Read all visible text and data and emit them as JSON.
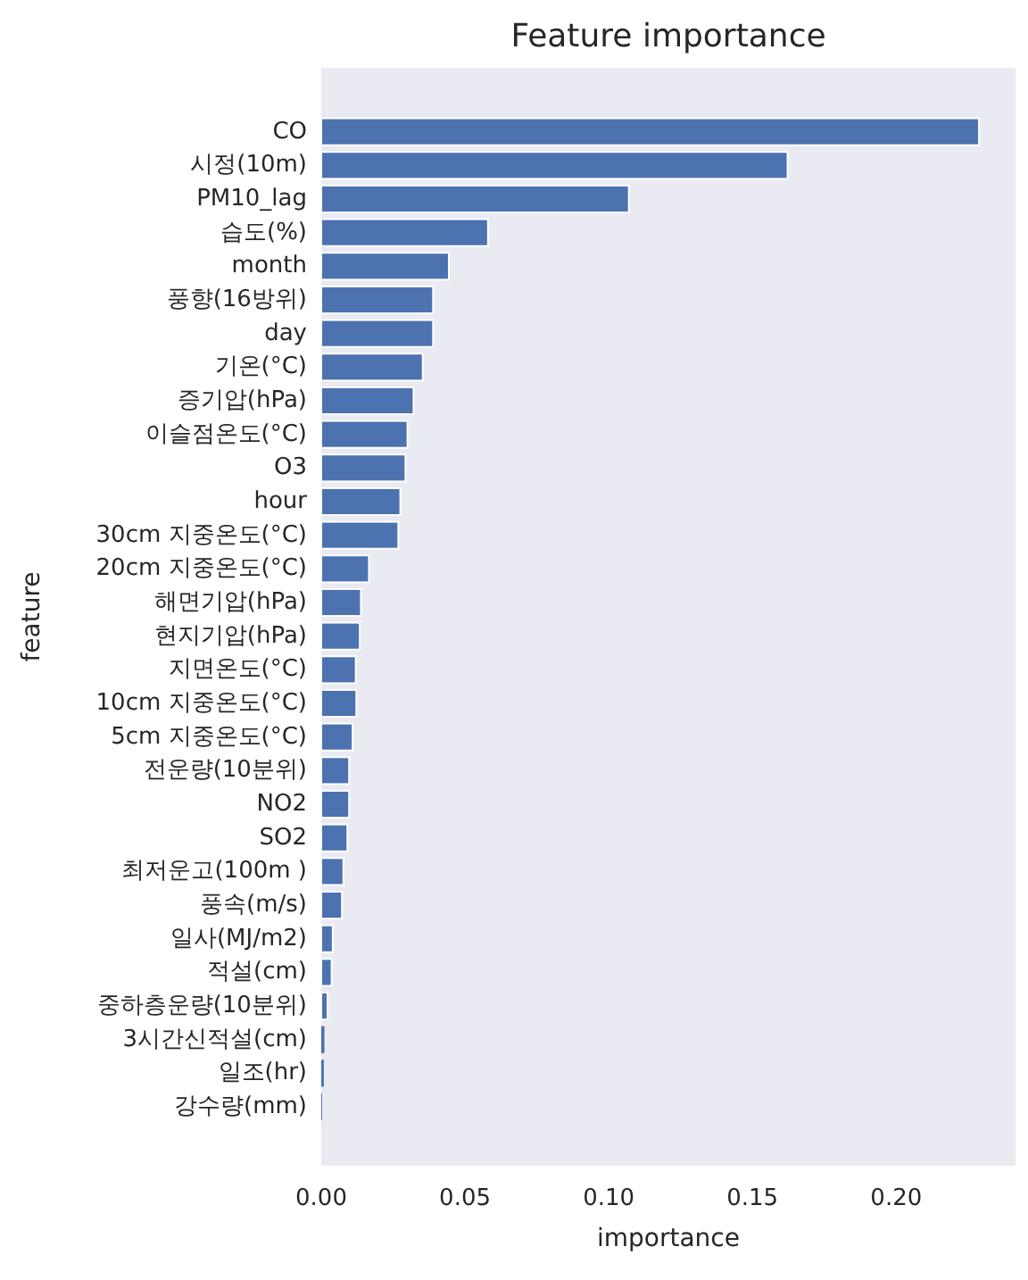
{
  "chart_data": {
    "type": "bar",
    "orientation": "horizontal",
    "title": "Feature importance",
    "xlabel": "importance",
    "ylabel": "feature",
    "categories": [
      "CO",
      "시정(10m)",
      "PM10_lag",
      "습도(%)",
      "month",
      "풍향(16방위)",
      "day",
      "기온(°C)",
      "증기압(hPa)",
      "이슬점온도(°C)",
      "O3",
      "hour",
      "30cm 지중온도(°C)",
      "20cm 지중온도(°C)",
      "해면기압(hPa)",
      "현지기압(hPa)",
      "지면온도(°C)",
      "10cm 지중온도(°C)",
      "5cm 지중온도(°C)",
      "전운량(10분위)",
      "NO2",
      "SO2",
      "최저운고(100m )",
      "풍속(m/s)",
      "일사(MJ/m2)",
      "적설(cm)",
      "중하층운량(10분위)",
      "3시간신적설(cm)",
      "일조(hr)",
      "강수량(mm)"
    ],
    "values": [
      0.2288,
      0.1622,
      0.107,
      0.058,
      0.0444,
      0.0389,
      0.0389,
      0.0353,
      0.0321,
      0.03,
      0.0293,
      0.0275,
      0.0268,
      0.0166,
      0.0138,
      0.0134,
      0.012,
      0.0122,
      0.0109,
      0.0097,
      0.0097,
      0.0091,
      0.0077,
      0.0072,
      0.004,
      0.0036,
      0.0022,
      0.0011,
      0.0009,
      0.0003
    ],
    "color": "#4c72b0",
    "xlim": [
      0,
      0.2415
    ],
    "xticks": [
      {
        "value": 0,
        "label": "0.00"
      },
      {
        "value": 0.05,
        "label": "0.05"
      },
      {
        "value": 0.1,
        "label": "0.10"
      },
      {
        "value": 0.15,
        "label": "0.15"
      },
      {
        "value": 0.2,
        "label": "0.20"
      }
    ]
  }
}
